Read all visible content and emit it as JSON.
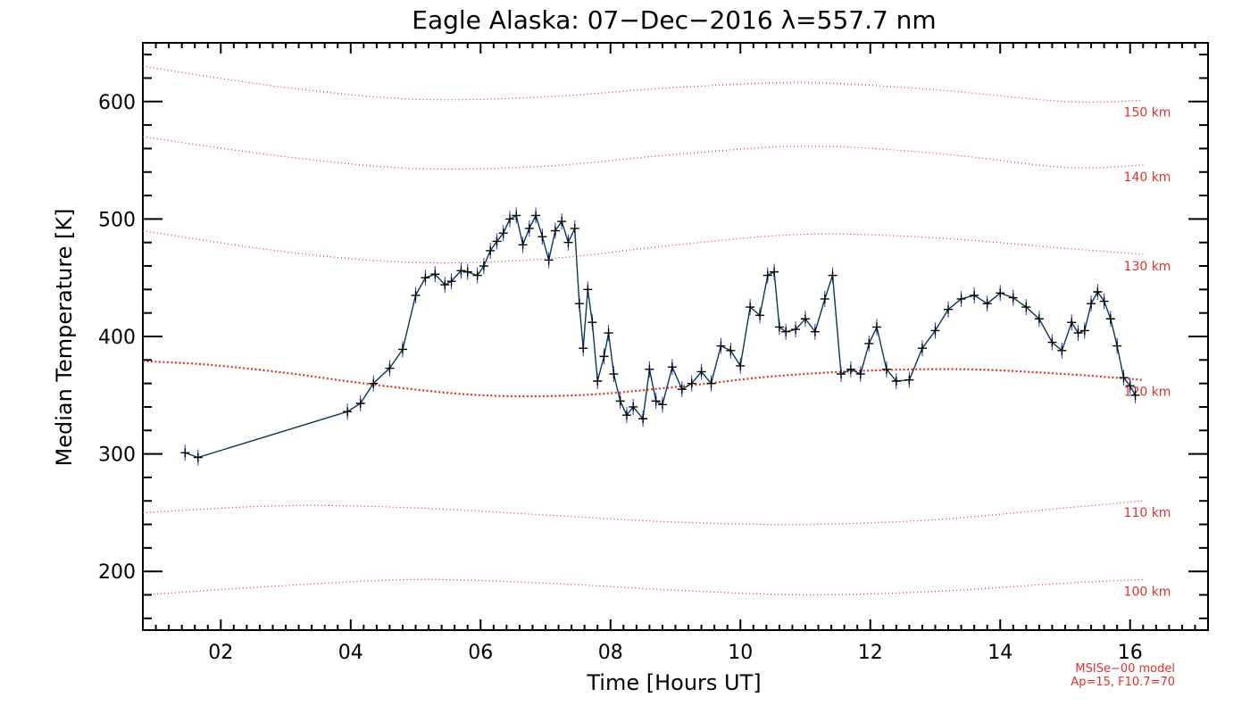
{
  "chart_data": {
    "type": "line",
    "title": "Eagle Alaska: 07−Dec−2016 λ=557.7 nm",
    "xlabel": "Time [Hours UT]",
    "ylabel": "Median Temperature [K]",
    "xlim": [
      0.8,
      17.2
    ],
    "ylim": [
      150,
      650
    ],
    "x_ticks": [
      2,
      4,
      6,
      8,
      10,
      12,
      14,
      16
    ],
    "x_tick_labels": [
      "02",
      "04",
      "06",
      "08",
      "10",
      "12",
      "14",
      "16"
    ],
    "y_ticks": [
      200,
      300,
      400,
      500,
      600
    ],
    "y_tick_labels": [
      "200",
      "300",
      "400",
      "500",
      "600"
    ],
    "grid": false,
    "series": [
      {
        "name": "",
        "color": "#0a3a4a",
        "errorbar_color": "#2a2aff",
        "marker": "plus",
        "x": [
          1.45,
          1.65,
          3.95,
          4.15,
          4.35,
          4.6,
          4.8,
          5.0,
          5.15,
          5.3,
          5.45,
          5.55,
          5.7,
          5.8,
          5.95,
          6.05,
          6.15,
          6.25,
          6.35,
          6.45,
          6.55,
          6.65,
          6.75,
          6.85,
          6.95,
          7.05,
          7.15,
          7.25,
          7.35,
          7.45,
          7.52,
          7.58,
          7.65,
          7.72,
          7.8,
          7.9,
          7.97,
          8.05,
          8.15,
          8.25,
          8.35,
          8.5,
          8.6,
          8.7,
          8.8,
          8.95,
          9.1,
          9.25,
          9.4,
          9.55,
          9.7,
          9.85,
          10.0,
          10.15,
          10.3,
          10.42,
          10.52,
          10.6,
          10.7,
          10.85,
          11.0,
          11.15,
          11.3,
          11.42,
          11.55,
          11.7,
          11.85,
          11.98,
          12.1,
          12.25,
          12.4,
          12.6,
          12.8,
          13.0,
          13.2,
          13.4,
          13.6,
          13.8,
          14.0,
          14.2,
          14.4,
          14.6,
          14.8,
          14.95,
          15.1,
          15.2,
          15.3,
          15.4,
          15.5,
          15.6,
          15.7,
          15.8,
          15.9,
          16.0,
          16.08
        ],
        "y": [
          301,
          297,
          336,
          343,
          360,
          373,
          389,
          435,
          450,
          453,
          444,
          447,
          456,
          455,
          452,
          460,
          473,
          481,
          488,
          500,
          503,
          478,
          492,
          503,
          485,
          465,
          490,
          498,
          480,
          492,
          428,
          390,
          440,
          412,
          362,
          383,
          403,
          368,
          345,
          333,
          340,
          330,
          372,
          345,
          342,
          374,
          355,
          360,
          370,
          360,
          392,
          388,
          375,
          425,
          418,
          452,
          455,
          408,
          404,
          406,
          415,
          404,
          432,
          452,
          368,
          372,
          368,
          394,
          408,
          372,
          362,
          363,
          390,
          405,
          423,
          432,
          435,
          428,
          437,
          433,
          425,
          415,
          395,
          388,
          412,
          403,
          405,
          428,
          438,
          430,
          415,
          392,
          365,
          358,
          350
        ]
      }
    ],
    "model_curves": {
      "color": "#e03030",
      "curves": [
        {
          "label": "150 km",
          "x": [
            0.8,
            3,
            5,
            7,
            9,
            11,
            13,
            15,
            16.2
          ],
          "y": [
            630,
            612,
            602,
            604,
            612,
            616,
            610,
            600,
            601
          ]
        },
        {
          "label": "140 km",
          "x": [
            0.8,
            3,
            5,
            7,
            9,
            11,
            13,
            15,
            16.2
          ],
          "y": [
            570,
            553,
            543,
            545,
            555,
            562,
            556,
            544,
            546
          ]
        },
        {
          "label": "130 km",
          "x": [
            0.8,
            3,
            5,
            7,
            9,
            11,
            13,
            15,
            16.2
          ],
          "y": [
            490,
            472,
            463,
            466,
            478,
            487,
            484,
            475,
            470
          ]
        },
        {
          "label": "120 km",
          "x": [
            0.8,
            1.8,
            3.0,
            4.5,
            6.0,
            7.5,
            9.0,
            10.5,
            12.0,
            13.5,
            15.0,
            16.2
          ],
          "y": [
            379,
            376,
            369,
            358,
            350,
            350,
            357,
            366,
            371,
            372,
            368,
            363
          ],
          "emphasis": true
        },
        {
          "label": "110 km",
          "x": [
            0.8,
            3,
            5,
            7,
            9,
            11,
            13,
            15,
            16.2
          ],
          "y": [
            250,
            256,
            254,
            248,
            242,
            240,
            244,
            254,
            260
          ]
        },
        {
          "label": "100 km",
          "x": [
            0.8,
            3,
            5,
            7,
            9,
            11,
            13,
            15,
            16.2
          ],
          "y": [
            180,
            188,
            193,
            190,
            184,
            180,
            183,
            190,
            193
          ]
        }
      ]
    },
    "annotations": [
      "MSISe−00 model",
      "Ap=15, F10.7=70"
    ]
  }
}
